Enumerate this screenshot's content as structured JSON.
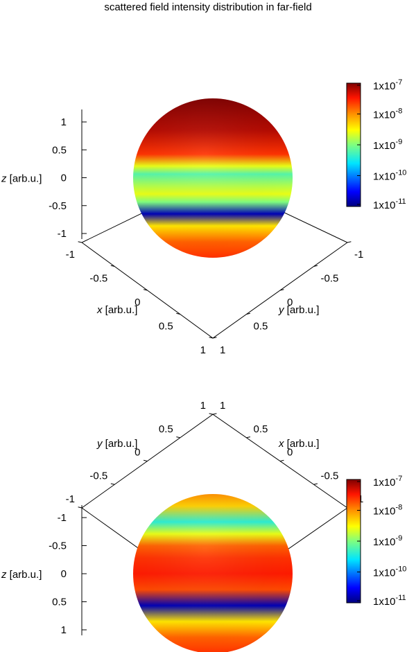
{
  "title": "scattered field intensity distribution in far-field",
  "chart_data": [
    {
      "type": "heatmap",
      "view": "top",
      "surface": "sphere",
      "xlabel": "x [arb.u.]",
      "ylabel": "y [arb.u.]",
      "zlabel": "z [arb.u.]",
      "x_ticks": [
        "-1",
        "-0.5",
        "0",
        "0.5",
        "1"
      ],
      "y_ticks": [
        "-1",
        "-0.5",
        "0",
        "0.5",
        "1"
      ],
      "z_ticks": [
        "1",
        "0.5",
        "0",
        "-0.5",
        "-1"
      ],
      "xlim": [
        -1,
        1
      ],
      "ylim": [
        -1,
        1
      ],
      "zlim": [
        -1,
        1
      ],
      "colorbar": {
        "scale": "log",
        "range": [
          1e-11,
          1e-07
        ],
        "labels": [
          {
            "base": "1x10",
            "exp": "-7"
          },
          {
            "base": "1x10",
            "exp": "-8"
          },
          {
            "base": "1x10",
            "exp": "-9"
          },
          {
            "base": "1x10",
            "exp": "-10"
          },
          {
            "base": "1x10",
            "exp": "-11"
          }
        ]
      },
      "intensity_profile": {
        "z": [
          1,
          0.6,
          0.3,
          0.15,
          0.05,
          -0.1,
          -0.2,
          -0.3,
          -0.45,
          -0.6,
          -0.8,
          -1
        ],
        "log10_intensity": [
          -7.0,
          -7.2,
          -7.6,
          -8.6,
          -9.2,
          -8.8,
          -8.6,
          -9.0,
          -10.8,
          -8.4,
          -7.8,
          -7.6
        ]
      }
    },
    {
      "type": "heatmap",
      "view": "bottom",
      "surface": "sphere",
      "xlabel": "x [arb.u.]",
      "ylabel": "y [arb.u.]",
      "zlabel": "z [arb.u.]",
      "x_ticks": [
        "1",
        "0.5",
        "0",
        "-0.5",
        "-1"
      ],
      "y_ticks": [
        "1",
        "0.5",
        "0",
        "-0.5",
        "-1"
      ],
      "z_ticks": [
        "-1",
        "-0.5",
        "0",
        "0.5",
        "1"
      ],
      "xlim": [
        -1,
        1
      ],
      "ylim": [
        -1,
        1
      ],
      "zlim": [
        -1,
        1
      ],
      "colorbar": {
        "scale": "log",
        "range": [
          1e-11,
          1e-07
        ],
        "labels": [
          {
            "base": "1x10",
            "exp": "-7"
          },
          {
            "base": "1x10",
            "exp": "-8"
          },
          {
            "base": "1x10",
            "exp": "-9"
          },
          {
            "base": "1x10",
            "exp": "-10"
          },
          {
            "base": "1x10",
            "exp": "-11"
          }
        ]
      },
      "intensity_profile": {
        "z": [
          -1,
          -0.85,
          -0.65,
          -0.5,
          -0.35,
          -0.2,
          0,
          0.2,
          0.4,
          0.6,
          0.8,
          1
        ],
        "log10_intensity": [
          -8.0,
          -8.3,
          -9.4,
          -8.6,
          -7.8,
          -7.6,
          -7.5,
          -7.7,
          -10.8,
          -8.4,
          -7.8,
          -7.6
        ]
      }
    }
  ]
}
